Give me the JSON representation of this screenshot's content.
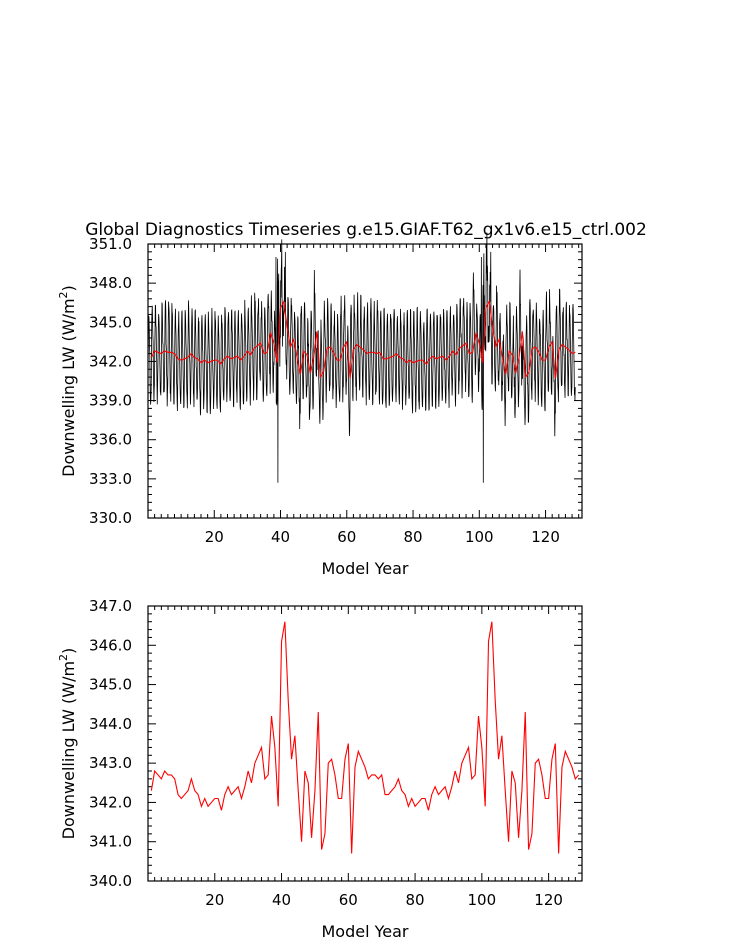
{
  "title": "Global Diagnostics Timeseries g.e15.GIAF.T62_gx1v6.e15_ctrl.002",
  "colors": {
    "monthly": "#000000",
    "annual": "#ff0000",
    "axes": "#000000"
  },
  "chart_data": [
    {
      "type": "line",
      "xlabel": "Model Year",
      "ylabel": "Downwelling LW (W/m2)",
      "xlim": [
        0,
        131
      ],
      "ylim": [
        330.0,
        351.0
      ],
      "xticks": [
        20,
        40,
        60,
        80,
        100,
        120
      ],
      "yticks": [
        330.0,
        333.0,
        336.0,
        339.0,
        342.0,
        345.0,
        348.0,
        351.0
      ],
      "series": [
        {
          "role": "monthly",
          "color": "#000000",
          "description_values": "monthly values oscillating around annual mean with seasonal amplitude ~ +/-3.5; extremes: min 332.7 at year ~39.2 and ~101.2, max 350.4 at year ~41.5 and ~103.5"
        },
        {
          "role": "annual",
          "color": "#ff0000"
        }
      ]
    },
    {
      "type": "line",
      "xlabel": "Model Year",
      "ylabel": "Downwelling LW (W/m2)",
      "xlim": [
        0,
        130
      ],
      "ylim": [
        340.0,
        347.0
      ],
      "xticks": [
        20,
        40,
        60,
        80,
        100,
        120
      ],
      "yticks": [
        340.0,
        341.0,
        342.0,
        343.0,
        344.0,
        345.0,
        346.0,
        347.0
      ],
      "series": [
        {
          "role": "annual",
          "color": "#ff0000",
          "x_start": 1,
          "values": [
            342.3,
            342.8,
            342.7,
            342.6,
            342.8,
            342.7,
            342.7,
            342.6,
            342.2,
            342.1,
            342.2,
            342.3,
            342.6,
            342.3,
            342.2,
            341.9,
            342.1,
            341.9,
            342.0,
            342.1,
            342.1,
            341.8,
            342.2,
            342.4,
            342.2,
            342.3,
            342.4,
            342.1,
            342.4,
            342.8,
            342.5,
            343.0,
            343.2,
            343.4,
            342.6,
            342.7,
            344.2,
            343.4,
            341.9,
            346.1,
            346.6,
            344.6,
            343.1,
            343.7,
            342.3,
            341.0,
            342.8,
            342.5,
            341.1,
            342.3,
            344.3,
            340.8,
            341.2,
            343.0,
            343.1,
            342.7,
            342.1,
            342.1,
            343.1,
            343.5,
            340.7,
            342.9,
            343.3,
            343.1,
            342.9,
            342.6,
            342.7,
            342.7,
            342.6,
            342.7,
            342.2,
            342.2,
            342.3,
            342.4,
            342.6,
            342.3,
            342.2,
            341.9,
            342.1,
            341.9,
            342.0,
            342.1,
            342.1,
            341.8,
            342.2,
            342.4,
            342.2,
            342.3,
            342.4,
            342.1,
            342.4,
            342.8,
            342.5,
            343.0,
            343.2,
            343.4,
            342.6,
            342.7,
            344.2,
            343.4,
            341.9,
            346.1,
            346.6,
            344.6,
            343.1,
            343.7,
            342.3,
            341.0,
            342.8,
            342.5,
            341.1,
            342.3,
            344.3,
            340.8,
            341.2,
            343.0,
            343.1,
            342.7,
            342.1,
            342.1,
            343.1,
            343.5,
            340.7,
            342.9,
            343.3,
            343.1,
            342.9,
            342.6,
            342.7
          ]
        }
      ]
    }
  ]
}
